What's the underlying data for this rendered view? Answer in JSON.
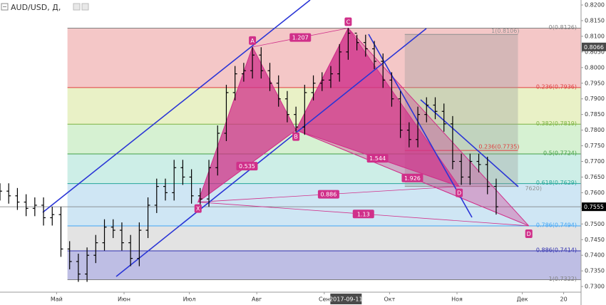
{
  "chart_data": {
    "type": "ohlc",
    "title": "AUD/USD, Д,",
    "x": [
      4,
      8,
      12,
      16,
      20,
      24,
      28,
      32,
      36,
      40,
      44,
      48,
      52,
      56,
      60,
      64,
      68,
      72,
      76,
      80,
      84,
      88,
      92,
      96,
      100,
      104,
      108,
      112,
      116,
      120,
      124,
      128,
      132,
      136,
      140,
      144,
      148,
      152,
      156,
      160,
      164,
      168,
      172,
      176,
      180,
      184,
      188,
      192,
      196,
      200,
      204,
      208,
      212,
      216,
      220,
      224,
      228,
      232
    ],
    "open": [
      0.76,
      0.7605,
      0.759,
      0.757,
      0.755,
      0.756,
      0.752,
      0.753,
      0.742,
      0.738,
      0.734,
      0.74,
      0.744,
      0.749,
      0.748,
      0.744,
      0.739,
      0.748,
      0.756,
      0.762,
      0.76,
      0.768,
      0.765,
      0.759,
      0.758,
      0.768,
      0.779,
      0.792,
      0.798,
      0.799,
      0.804,
      0.799,
      0.795,
      0.79,
      0.785,
      0.781,
      0.792,
      0.795,
      0.796,
      0.798,
      0.805,
      0.811,
      0.808,
      0.806,
      0.802,
      0.796,
      0.79,
      0.78,
      0.777,
      0.785,
      0.788,
      0.786,
      0.782,
      0.77,
      0.765,
      0.77,
      0.769,
      0.762
    ],
    "high": [
      0.763,
      0.763,
      0.7615,
      0.7595,
      0.7585,
      0.7585,
      0.7555,
      0.7555,
      0.7445,
      0.7405,
      0.7425,
      0.7465,
      0.7515,
      0.7515,
      0.7505,
      0.7465,
      0.7505,
      0.7585,
      0.7645,
      0.7645,
      0.7705,
      0.7705,
      0.7675,
      0.7615,
      0.7705,
      0.7815,
      0.7945,
      0.8005,
      0.8015,
      0.8065,
      0.8065,
      0.8015,
      0.7975,
      0.7925,
      0.7875,
      0.7945,
      0.7975,
      0.7985,
      0.8005,
      0.8075,
      0.8126,
      0.8105,
      0.8105,
      0.8085,
      0.8045,
      0.7985,
      0.7925,
      0.7825,
      0.7875,
      0.7905,
      0.7905,
      0.7885,
      0.7845,
      0.7725,
      0.7725,
      0.7725,
      0.7715,
      0.7645
    ],
    "low": [
      0.7575,
      0.7565,
      0.7545,
      0.7525,
      0.7525,
      0.7495,
      0.7495,
      0.7395,
      0.7355,
      0.7315,
      0.7315,
      0.7375,
      0.7415,
      0.7455,
      0.7415,
      0.7365,
      0.7365,
      0.7455,
      0.7535,
      0.7575,
      0.7575,
      0.7625,
      0.7565,
      0.7555,
      0.7555,
      0.7655,
      0.7765,
      0.7895,
      0.7955,
      0.7965,
      0.7965,
      0.7925,
      0.7875,
      0.7825,
      0.7785,
      0.7785,
      0.7895,
      0.7925,
      0.7935,
      0.7955,
      0.8025,
      0.8055,
      0.8035,
      0.7995,
      0.7935,
      0.7875,
      0.7775,
      0.7745,
      0.7745,
      0.7825,
      0.7835,
      0.7795,
      0.7675,
      0.7625,
      0.7625,
      0.7665,
      0.7595,
      0.753
    ],
    "close": [
      0.7605,
      0.759,
      0.757,
      0.755,
      0.756,
      0.752,
      0.753,
      0.742,
      0.738,
      0.734,
      0.74,
      0.744,
      0.749,
      0.748,
      0.744,
      0.739,
      0.748,
      0.756,
      0.762,
      0.76,
      0.768,
      0.765,
      0.759,
      0.758,
      0.768,
      0.779,
      0.792,
      0.798,
      0.799,
      0.804,
      0.799,
      0.795,
      0.79,
      0.785,
      0.781,
      0.792,
      0.795,
      0.796,
      0.798,
      0.805,
      0.811,
      0.808,
      0.806,
      0.802,
      0.796,
      0.79,
      0.78,
      0.777,
      0.785,
      0.788,
      0.786,
      0.782,
      0.77,
      0.765,
      0.77,
      0.769,
      0.762,
      0.7555
    ],
    "color": "#000000",
    "xlim": [
      4,
      271
    ],
    "xticks": [
      {
        "value": 30,
        "label": "Май"
      },
      {
        "value": 61,
        "label": "Июн"
      },
      {
        "value": 91,
        "label": "Июл"
      },
      {
        "value": 122,
        "label": "Авг"
      },
      {
        "value": 153,
        "label": "Сен"
      },
      {
        "value": 183,
        "label": "Окт"
      },
      {
        "value": 214,
        "label": "Ноя"
      },
      {
        "value": 244,
        "label": "Дек"
      },
      {
        "value": 263,
        "label": "20"
      }
    ],
    "cursor_x": {
      "value": 163,
      "label": "2017-09-11"
    },
    "ylim": [
      0.7282,
      0.8216
    ],
    "yticks": [
      {
        "value": 0.73,
        "label": "0.7300"
      },
      {
        "value": 0.735,
        "label": "0.7350"
      },
      {
        "value": 0.74,
        "label": "0.7400"
      },
      {
        "value": 0.745,
        "label": "0.7450"
      },
      {
        "value": 0.75,
        "label": "0.7500"
      },
      {
        "value": 0.755,
        "label": "0.7550"
      },
      {
        "value": 0.76,
        "label": "0.7600"
      },
      {
        "value": 0.765,
        "label": "0.7650"
      },
      {
        "value": 0.77,
        "label": "0.7700"
      },
      {
        "value": 0.775,
        "label": "0.7750"
      },
      {
        "value": 0.78,
        "label": "0.7800"
      },
      {
        "value": 0.785,
        "label": "0.7850"
      },
      {
        "value": 0.79,
        "label": "0.7900"
      },
      {
        "value": 0.795,
        "label": "0.7950"
      },
      {
        "value": 0.8,
        "label": "0.8000"
      },
      {
        "value": 0.805,
        "label": "0.8050"
      },
      {
        "value": 0.81,
        "label": "0.8100"
      },
      {
        "value": 0.815,
        "label": "0.8150"
      },
      {
        "value": 0.82,
        "label": "0.8200"
      }
    ],
    "price_tags": [
      {
        "value": 0.8066,
        "label": "0.8066",
        "color": "#4a4a4a"
      },
      {
        "value": 0.7555,
        "label": "0.7555",
        "color": "#000000"
      }
    ],
    "fib": {
      "x_start": 35,
      "levels": [
        {
          "value": 0.8126,
          "label": "0(0.8126)",
          "color": "#808080",
          "fill": "#f4c7c7"
        },
        {
          "value": 0.7936,
          "label": "0.236(0.7936)",
          "color": "#e04040",
          "fill": "#e9f1c6"
        },
        {
          "value": 0.7819,
          "label": "0.382(0.7819)",
          "color": "#7cb342",
          "fill": "#d6f1d2"
        },
        {
          "value": 0.7724,
          "label": "0.5(0.7724)",
          "color": "#43a047",
          "fill": "#cdeee7"
        },
        {
          "value": 0.7629,
          "label": "0.618(0.7629)",
          "color": "#26a69a",
          "fill": "#cfe6f4"
        },
        {
          "value": 0.7494,
          "label": "0.786(0.7494)",
          "color": "#42a5f5",
          "fill": "#e3e3e3"
        },
        {
          "value": 0.7414,
          "label": "0.886(0.7414)",
          "color": "#3030b0",
          "fill": "#bebee4"
        },
        {
          "value": 0.7322,
          "label": "1(0.7322)",
          "color": "#808080"
        }
      ]
    },
    "fib_extension": {
      "x_start": 190,
      "x_end": 242,
      "levels": [
        {
          "value": 0.8106,
          "label": "1(0.8106)",
          "color": "#909090"
        },
        {
          "value": 0.7735,
          "label": "0.236(0.7735)",
          "color": "#e04040"
        },
        {
          "value": 0.762,
          "label": "7620)",
          "color": "#909090"
        }
      ]
    },
    "pattern": {
      "color": "#d0308a",
      "points": [
        {
          "label": "X",
          "x": 95,
          "price": 0.757
        },
        {
          "label": "A",
          "x": 120,
          "price": 0.8066
        },
        {
          "label": "B",
          "x": 140,
          "price": 0.78
        },
        {
          "label": "C",
          "x": 164,
          "price": 0.8126
        },
        {
          "label": "D",
          "x": 215,
          "price": 0.762
        },
        {
          "label": "D",
          "x": 247,
          "price": 0.7494
        }
      ],
      "ratios": [
        1.207,
        0.535,
        0.886,
        1.544,
        1.926,
        1.13
      ]
    }
  }
}
